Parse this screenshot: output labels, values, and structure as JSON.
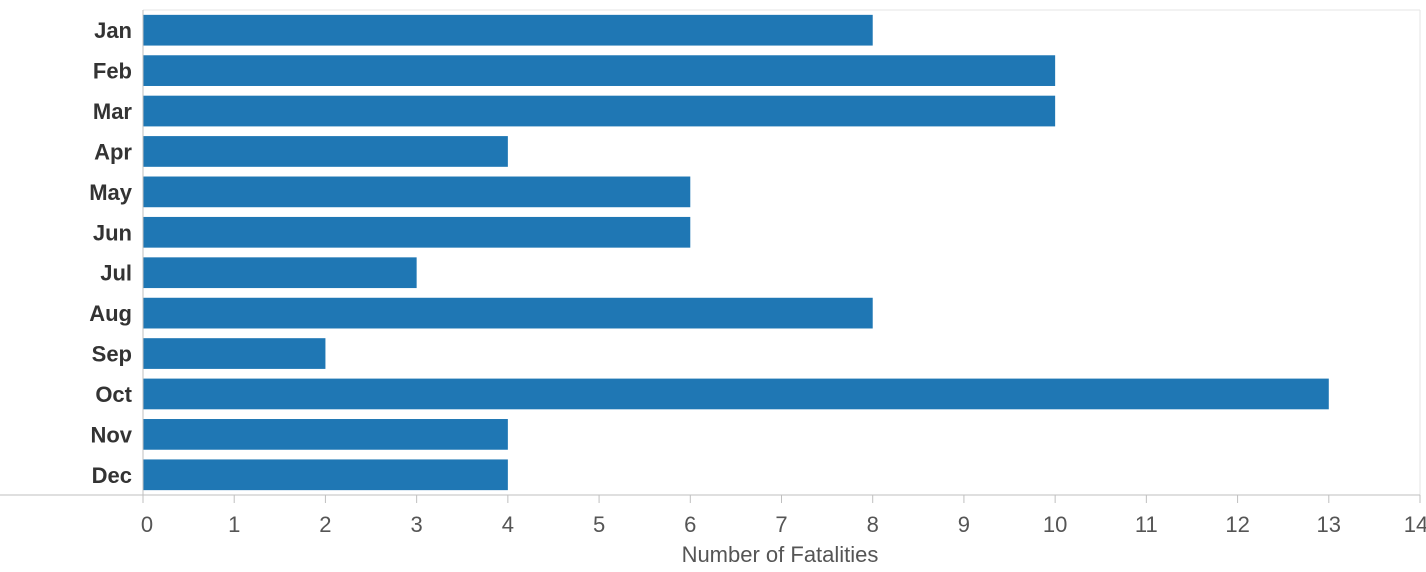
{
  "chart_data": {
    "type": "bar",
    "orientation": "horizontal",
    "categories": [
      "Jan",
      "Feb",
      "Mar",
      "Apr",
      "May",
      "Jun",
      "Jul",
      "Aug",
      "Sep",
      "Oct",
      "Nov",
      "Dec"
    ],
    "values": [
      8,
      10,
      10,
      4,
      6,
      6,
      3,
      8,
      2,
      13,
      4,
      4
    ],
    "xlabel": "Number of Fatalities",
    "ylabel": "",
    "xlim": [
      0,
      14
    ],
    "xticks": [
      "0",
      "1",
      "2",
      "3",
      "4",
      "5",
      "6",
      "7",
      "8",
      "9",
      "10",
      "11",
      "12",
      "13",
      "14"
    ],
    "grid": false,
    "bar_color": "#1f77b4"
  }
}
